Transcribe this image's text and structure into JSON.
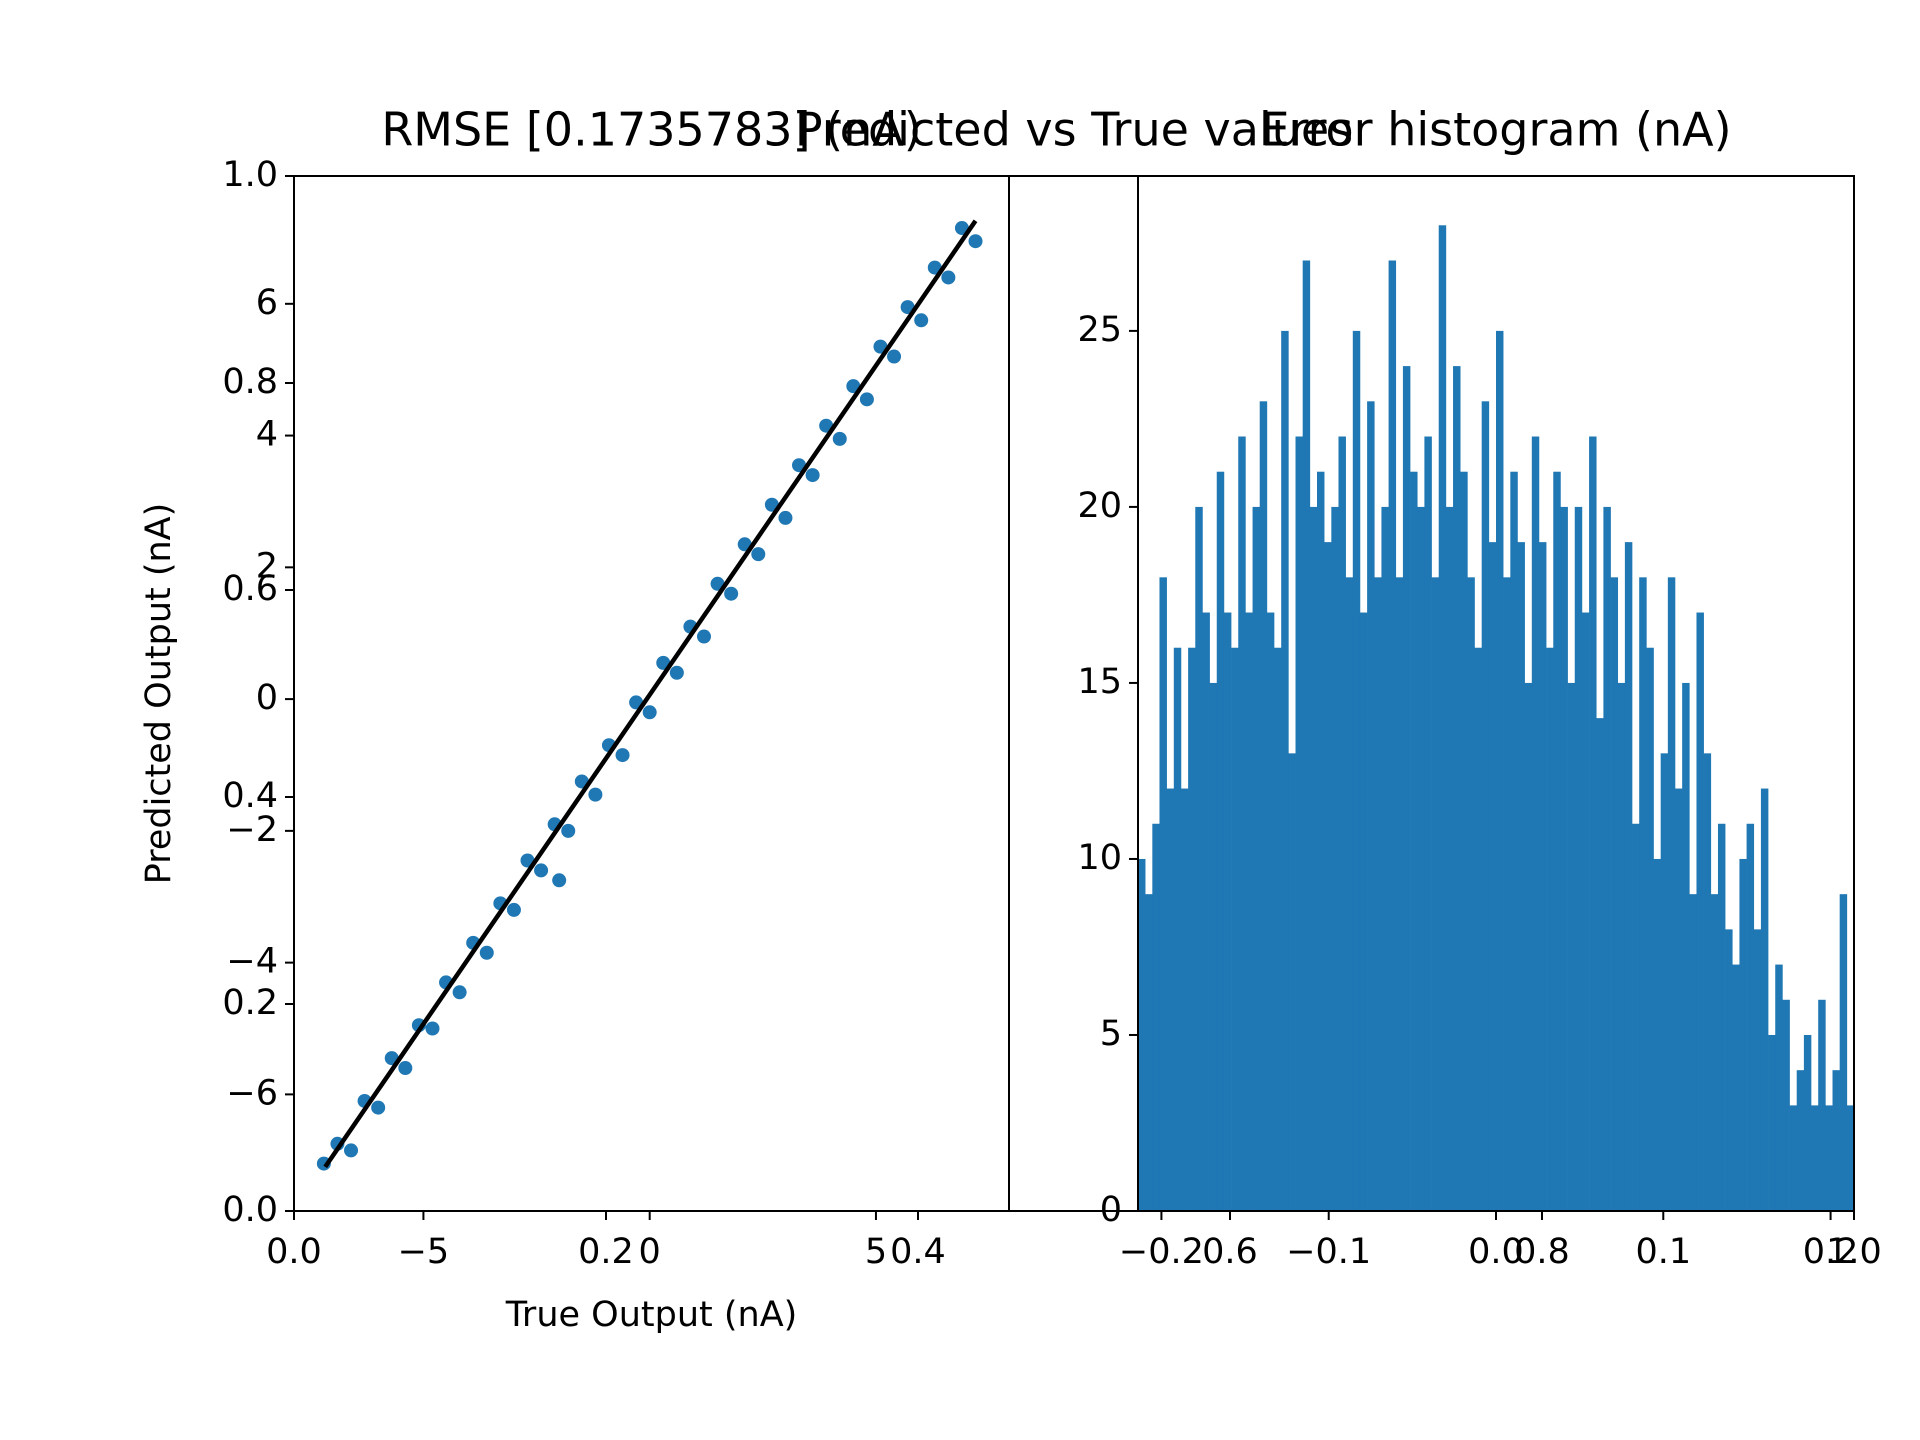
{
  "chart_data": [
    {
      "type": "frame",
      "title": "Predicted vs True values",
      "xlim": [
        0,
        1
      ],
      "ylim": [
        0,
        1
      ],
      "xticks": [
        {
          "value": 0,
          "label": "0.0"
        },
        0.2,
        0.4,
        0.6,
        0.8,
        {
          "value": 1,
          "label": "1.0"
        }
      ],
      "yticks": [
        {
          "value": 0,
          "label": "0.0"
        },
        0.2,
        0.4,
        0.6,
        0.8,
        {
          "value": 1,
          "label": "1.0"
        }
      ]
    },
    {
      "type": "scatter",
      "title": "RMSE [0.1735783] (nA)",
      "x_label": "True Output (nA)",
      "y_label": "Predicted Output (nA)",
      "color": "#1f77b4",
      "x": [
        -7.2,
        -6.9,
        -6.6,
        -6.3,
        -6.0,
        -5.7,
        -5.4,
        -5.1,
        -4.8,
        -4.5,
        -4.2,
        -3.9,
        -3.6,
        -3.3,
        -3.0,
        -2.7,
        -2.4,
        -2.1,
        -1.8,
        -1.5,
        -1.2,
        -0.9,
        -0.6,
        -0.3,
        0.0,
        0.3,
        0.6,
        0.9,
        1.2,
        1.5,
        1.8,
        2.1,
        2.4,
        2.7,
        3.0,
        3.3,
        3.6,
        3.9,
        4.2,
        4.5,
        4.8,
        5.1,
        5.4,
        5.7,
        6.0,
        6.3,
        6.6,
        6.9,
        7.2,
        -2.0
      ],
      "y": [
        -7.05,
        -6.75,
        -6.85,
        -6.1,
        -6.2,
        -5.45,
        -5.6,
        -4.95,
        -5.0,
        -4.3,
        -4.45,
        -3.7,
        -3.85,
        -3.1,
        -3.2,
        -2.45,
        -2.6,
        -1.9,
        -2.0,
        -1.25,
        -1.45,
        -0.7,
        -0.85,
        -0.05,
        -0.2,
        0.55,
        0.4,
        1.1,
        0.95,
        1.75,
        1.6,
        2.35,
        2.2,
        2.95,
        2.75,
        3.55,
        3.4,
        4.15,
        3.95,
        4.75,
        4.55,
        5.35,
        5.2,
        5.95,
        5.75,
        6.55,
        6.4,
        7.15,
        6.95,
        -2.75
      ],
      "line": {
        "x": [
          -7.17,
          7.2
        ],
        "y": [
          -7.1,
          7.26
        ],
        "color": "#000000"
      },
      "xlim": [
        -7.86,
        7.94
      ],
      "ylim": [
        -7.77,
        7.94
      ],
      "xticks": [
        {
          "value": -5,
          "label": "−5"
        },
        0,
        5
      ],
      "yticks": [
        {
          "value": -6,
          "label": "−6"
        },
        {
          "value": -4,
          "label": "−4"
        },
        {
          "value": -2,
          "label": "−2"
        },
        0,
        2,
        4,
        6
      ]
    },
    {
      "type": "histogram",
      "title": "Error histogram (nA)",
      "color": "#1f77b4",
      "bins": [
        -0.214,
        -0.20972,
        -0.20544,
        -0.20116,
        -0.19688,
        -0.1926,
        -0.18832,
        -0.18404,
        -0.17976,
        -0.17548,
        -0.1712,
        -0.16692,
        -0.16264,
        -0.15836,
        -0.15408,
        -0.1498,
        -0.14552,
        -0.14124,
        -0.13696,
        -0.13268,
        -0.1284,
        -0.12412,
        -0.11984,
        -0.11556,
        -0.11128,
        -0.107,
        -0.10272,
        -0.09844,
        -0.09416,
        -0.08988,
        -0.0856,
        -0.08132,
        -0.07704,
        -0.07276,
        -0.06848,
        -0.0642,
        -0.05992,
        -0.05564,
        -0.05136,
        -0.04708,
        -0.0428,
        -0.03852,
        -0.03424,
        -0.02996,
        -0.02568,
        -0.0214,
        -0.01712,
        -0.01284,
        -0.00856,
        -0.00428,
        0,
        0.00428,
        0.00856,
        0.01284,
        0.01712,
        0.0214,
        0.02568,
        0.02996,
        0.03424,
        0.03852,
        0.0428,
        0.04708,
        0.05136,
        0.05564,
        0.05992,
        0.0642,
        0.06848,
        0.07276,
        0.07704,
        0.08132,
        0.0856,
        0.08988,
        0.09416,
        0.09844,
        0.10272,
        0.107,
        0.11128,
        0.11556,
        0.11984,
        0.12412,
        0.1284,
        0.13268,
        0.13696,
        0.14124,
        0.14552,
        0.1498,
        0.15408,
        0.15836,
        0.16264,
        0.16692,
        0.1712,
        0.17548,
        0.17976,
        0.18404,
        0.18832,
        0.1926,
        0.19688,
        0.20116,
        0.20544,
        0.20972,
        0.214
      ],
      "counts": [
        10,
        9,
        11,
        18,
        12,
        16,
        12,
        16,
        20,
        17,
        15,
        21,
        17,
        16,
        22,
        17,
        20,
        23,
        17,
        16,
        25,
        13,
        22,
        27,
        20,
        21,
        19,
        20,
        22,
        18,
        25,
        17,
        23,
        18,
        20,
        27,
        18,
        24,
        21,
        20,
        22,
        18,
        28,
        20,
        24,
        21,
        18,
        16,
        23,
        19,
        25,
        18,
        21,
        19,
        15,
        22,
        19,
        16,
        21,
        20,
        15,
        20,
        17,
        22,
        14,
        20,
        18,
        15,
        19,
        11,
        18,
        16,
        10,
        13,
        18,
        12,
        15,
        9,
        17,
        13,
        9,
        11,
        8,
        7,
        10,
        11,
        8,
        12,
        5,
        7,
        6,
        3,
        4,
        5,
        3,
        6,
        3,
        4,
        9,
        3
      ],
      "xlim": [
        -0.214,
        0.214
      ],
      "ylim": [
        0,
        29.4
      ],
      "xticks": [
        {
          "value": -0.2,
          "label": "−0.2"
        },
        {
          "value": -0.1,
          "label": "−0.1"
        },
        {
          "value": 0,
          "label": "0.0"
        },
        0.1,
        0.2
      ],
      "yticks": [
        0,
        5,
        10,
        15,
        20,
        25
      ]
    }
  ]
}
